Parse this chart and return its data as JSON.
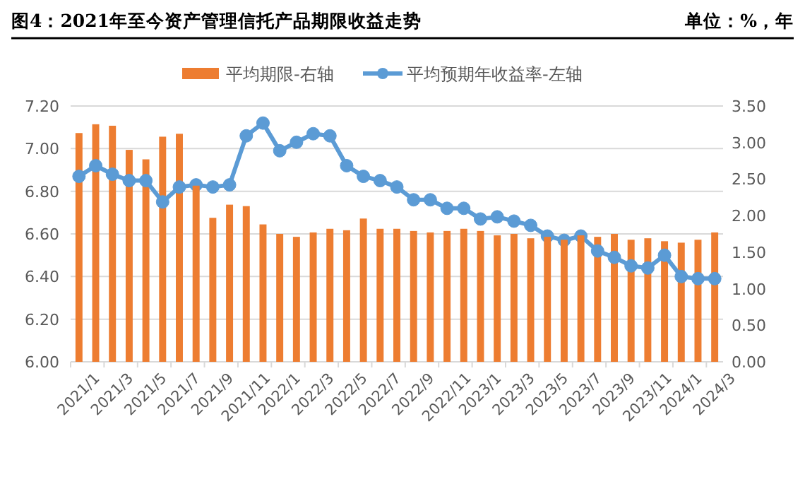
{
  "chart_data": {
    "type": "bar",
    "title": "图4：2021年至今资产管理信托产品期限收益走势",
    "annotations": [
      "单位：%，年"
    ],
    "categories": [
      "2021/1",
      null,
      "2021/3",
      null,
      "2021/5",
      null,
      "2021/7",
      null,
      "2021/9",
      null,
      "2021/11",
      null,
      "2022/1",
      null,
      "2022/3",
      null,
      "2022/5",
      null,
      "2022/7",
      null,
      "2022/9",
      null,
      "2022/11",
      null,
      "2023/1",
      null,
      "2023/3",
      null,
      "2023/5",
      null,
      "2023/7",
      null,
      "2023/9",
      null,
      "2023/11",
      null,
      "2024/1",
      null,
      "2024/3"
    ],
    "series": [
      {
        "name": "平均期限-右轴",
        "axis": "y2",
        "color": "#ed7d31",
        "values": [
          3.13,
          3.25,
          3.23,
          2.9,
          2.77,
          3.08,
          3.12,
          2.41,
          1.97,
          2.15,
          2.13,
          1.88,
          1.75,
          1.71,
          1.77,
          1.82,
          1.8,
          1.96,
          1.82,
          1.82,
          1.79,
          1.77,
          1.79,
          1.82,
          1.79,
          1.73,
          1.75,
          1.69,
          1.71,
          1.67,
          1.73,
          1.71,
          1.75,
          1.67,
          1.69,
          1.65,
          1.63,
          1.67,
          1.77
        ]
      },
      {
        "name": "平均预期年收益率-左轴",
        "type": "line",
        "axis": "y",
        "color": "#5b9bd5",
        "marker": "circle",
        "values": [
          6.87,
          6.92,
          6.88,
          6.85,
          6.85,
          6.75,
          6.82,
          6.83,
          6.82,
          6.83,
          7.06,
          7.12,
          6.99,
          7.03,
          7.07,
          7.06,
          6.92,
          6.87,
          6.85,
          6.82,
          6.76,
          6.76,
          6.72,
          6.72,
          6.67,
          6.68,
          6.66,
          6.64,
          6.59,
          6.57,
          6.59,
          6.52,
          6.49,
          6.45,
          6.44,
          6.5,
          6.4,
          6.39,
          6.39
        ]
      }
    ],
    "ylim": [
      6,
      7.2
    ],
    "yticks": [
      {
        "value": 6,
        "label": "6.00"
      },
      {
        "value": 6.2,
        "label": "6.20"
      },
      {
        "value": 6.4,
        "label": "6.40"
      },
      {
        "value": 6.6,
        "label": "6.60"
      },
      {
        "value": 6.8,
        "label": "6.80"
      },
      {
        "value": 7,
        "label": "7.00"
      },
      {
        "value": 7.2,
        "label": "7.20"
      }
    ],
    "y2lim": [
      0,
      3.5
    ],
    "y2ticks": [
      {
        "value": 0,
        "label": "0.00"
      },
      {
        "value": 0.5,
        "label": "0.50"
      },
      {
        "value": 1,
        "label": "1.00"
      },
      {
        "value": 1.5,
        "label": "1.50"
      },
      {
        "value": 2,
        "label": "2.00"
      },
      {
        "value": 2.5,
        "label": "2.50"
      },
      {
        "value": 3,
        "label": "3.00"
      },
      {
        "value": 3.5,
        "label": "3.50"
      }
    ],
    "grid": "y",
    "legend": "top"
  }
}
